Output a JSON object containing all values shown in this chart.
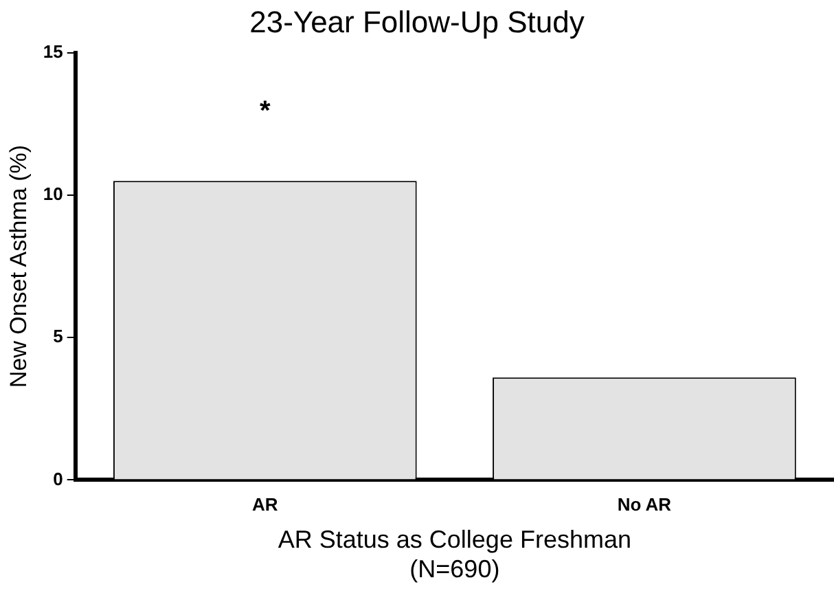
{
  "chart_data": {
    "type": "bar",
    "title": "23-Year Follow-Up Study",
    "xlabel": "AR Status as College Freshman\n(N=690)",
    "ylabel": "New Onset Asthma (%)",
    "categories": [
      "AR",
      "No AR"
    ],
    "values": [
      10.5,
      3.6
    ],
    "color": "#e3e3e3",
    "ylim": [
      0,
      15
    ],
    "yticks": [
      0,
      5,
      10,
      15
    ],
    "grid": false,
    "legend": false,
    "annotations": [
      "*"
    ]
  }
}
